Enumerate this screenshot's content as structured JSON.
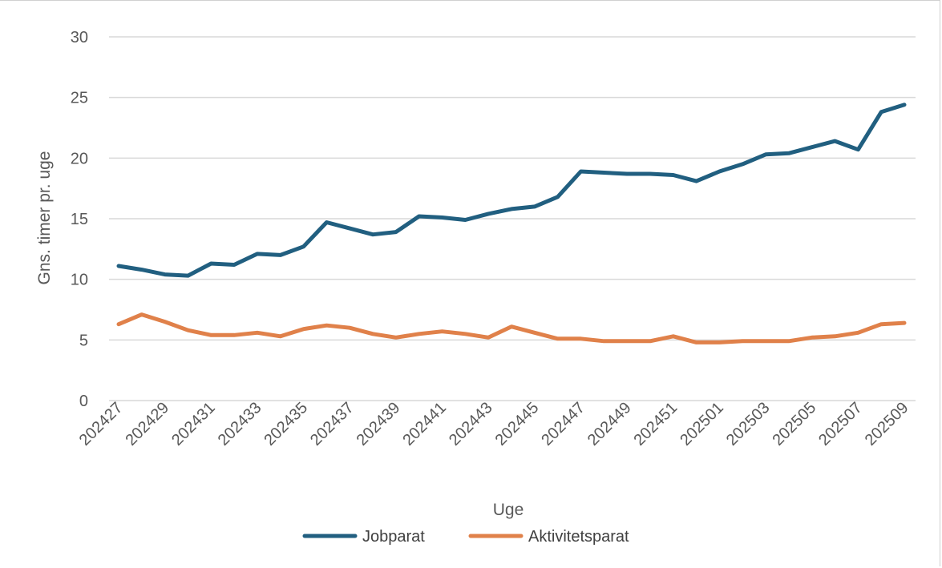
{
  "chart_data": {
    "type": "line",
    "xlabel": "Uge",
    "ylabel": "Gns. timer pr. uge",
    "ylim": [
      0,
      30
    ],
    "yticks": [
      0,
      5,
      10,
      15,
      20,
      25,
      30
    ],
    "grid": true,
    "legend_position": "bottom",
    "x": [
      "202427",
      "202428",
      "202429",
      "202430",
      "202431",
      "202432",
      "202433",
      "202434",
      "202435",
      "202436",
      "202437",
      "202438",
      "202439",
      "202440",
      "202441",
      "202442",
      "202443",
      "202444",
      "202445",
      "202446",
      "202447",
      "202448",
      "202449",
      "202450",
      "202451",
      "202452",
      "202501",
      "202502",
      "202503",
      "202504",
      "202505",
      "202506",
      "202507",
      "202508",
      "202509"
    ],
    "x_tick_labels": [
      "202427",
      "202429",
      "202431",
      "202433",
      "202435",
      "202437",
      "202439",
      "202441",
      "202443",
      "202445",
      "202447",
      "202449",
      "202451",
      "202501",
      "202503",
      "202505",
      "202507",
      "202509"
    ],
    "series": [
      {
        "name": "Jobparat",
        "color": "#215f80",
        "values": [
          11.1,
          10.8,
          10.4,
          10.3,
          11.3,
          11.2,
          12.1,
          12.0,
          12.7,
          14.7,
          14.2,
          13.7,
          13.9,
          15.2,
          15.1,
          14.9,
          15.4,
          15.8,
          16.0,
          16.8,
          18.9,
          18.8,
          18.7,
          18.7,
          18.6,
          18.1,
          18.9,
          19.5,
          20.3,
          20.4,
          20.9,
          21.4,
          20.7,
          23.8,
          24.4
        ]
      },
      {
        "name": "Aktivitetsparat",
        "color": "#e0814a",
        "values": [
          6.3,
          7.1,
          6.5,
          5.8,
          5.4,
          5.4,
          5.6,
          5.3,
          5.9,
          6.2,
          6.0,
          5.5,
          5.2,
          5.5,
          5.7,
          5.5,
          5.2,
          6.1,
          5.6,
          5.1,
          5.1,
          4.9,
          4.9,
          4.9,
          5.3,
          4.8,
          4.8,
          4.9,
          4.9,
          4.9,
          5.2,
          5.3,
          5.6,
          6.3,
          6.4
        ]
      }
    ]
  }
}
